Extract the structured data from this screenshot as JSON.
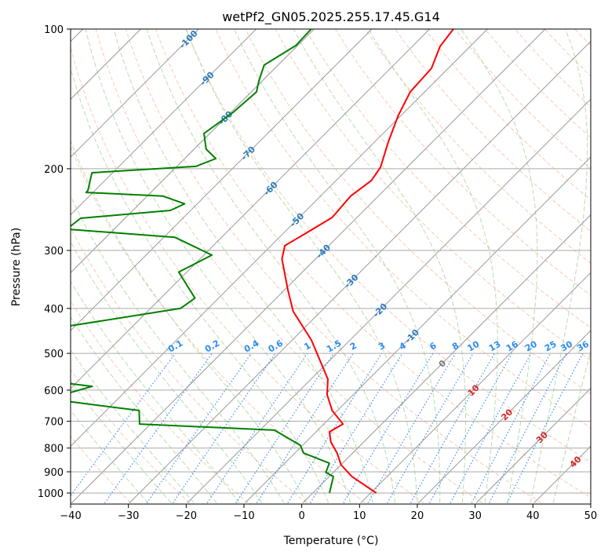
{
  "chart_data": {
    "type": "line",
    "subtype": "skew-t log-p",
    "title": "wetPf2_GN05.2025.255.17.45.G14",
    "xlabel": "Temperature (°C)",
    "ylabel": "Pressure (hPa)",
    "xlim": [
      -40,
      50
    ],
    "ylim": [
      1050,
      100
    ],
    "grid": true,
    "x_ticks": [
      "−40",
      "−30",
      "−20",
      "−10",
      "0",
      "10",
      "20",
      "30",
      "40",
      "50"
    ],
    "x_tick_values": [
      -40,
      -30,
      -20,
      -10,
      0,
      10,
      20,
      30,
      40,
      50
    ],
    "y_ticks": [
      "100",
      "200",
      "300",
      "400",
      "500",
      "600",
      "700",
      "800",
      "900",
      "1000"
    ],
    "y_tick_values": [
      100,
      200,
      300,
      400,
      500,
      600,
      700,
      800,
      900,
      1000
    ],
    "isotherm_labels": [
      "-100",
      "-90",
      "-80",
      "-70",
      "-60",
      "-50",
      "-40",
      "-30",
      "-20",
      "-10",
      "0",
      "10",
      "20",
      "30",
      "40"
    ],
    "isotherm_label_values": [
      -100,
      -90,
      -80,
      -70,
      -60,
      -50,
      -40,
      -30,
      -20,
      -10,
      0,
      10,
      20,
      30,
      40
    ],
    "mixing_ratio_labels": [
      "0.1",
      "0.2",
      "0.4",
      "0.6",
      "1",
      "1.5",
      "2",
      "3",
      "4",
      "6",
      "8",
      "10",
      "13",
      "16",
      "20",
      "25",
      "30",
      "36"
    ],
    "mixing_ratio_values": [
      0.1,
      0.2,
      0.4,
      0.6,
      1,
      1.5,
      2,
      3,
      4,
      6,
      8,
      10,
      13,
      16,
      20,
      25,
      30,
      36
    ],
    "series": [
      {
        "name": "Temperature",
        "color": "#ff0000",
        "pressure": [
          100,
          109,
          121.5,
          136.6,
          153.5,
          174.6,
          198.6,
          212,
          229,
          254.7,
          275.4,
          293,
          313,
          366,
          406,
          468,
          568,
          614,
          664,
          710,
          738,
          776,
          820,
          869,
          921,
          1000
        ],
        "temperature": [
          -55.9,
          -55.2,
          -52.9,
          -52.5,
          -50.5,
          -47.7,
          -44.6,
          -43.9,
          -44.8,
          -44.3,
          -46.1,
          -47.6,
          -45.8,
          -39.3,
          -34.8,
          -26.7,
          -17.1,
          -14.5,
          -10.9,
          -6.7,
          -7.7,
          -5.7,
          -2.7,
          0.0,
          3.9,
          11.0
        ]
      },
      {
        "name": "Dewpoint",
        "color": "#008000",
        "pressure": [
          100,
          108.5,
          119.6,
          129.3,
          136.6,
          151,
          167.9,
          181.5,
          190.2,
          197.7,
          204,
          223,
          225,
          229,
          238,
          246,
          255.7,
          270,
          281,
          307,
          334,
          380,
          400,
          436,
          479,
          573,
          589,
          607,
          620,
          636,
          664,
          710,
          732,
          789,
          820,
          862,
          903,
          921,
          1000
        ],
        "temperature": [
          -80.5,
          -80.3,
          -82.4,
          -80.6,
          -79.1,
          -79.6,
          -81.0,
          -77.9,
          -74.6,
          -76.7,
          -93.6,
          -91.2,
          -91.2,
          -77.3,
          -72.2,
          -73.5,
          -87.7,
          -88.2,
          -68.1,
          -58.6,
          -61.4,
          -54.1,
          -54.8,
          -70.8,
          -74.2,
          -65.4,
          -56.6,
          -59.3,
          -65.3,
          -57.6,
          -44.3,
          -41.9,
          -17.5,
          -10.4,
          -8.5,
          -2.3,
          -1.3,
          0.7,
          2.9
        ]
      }
    ]
  }
}
